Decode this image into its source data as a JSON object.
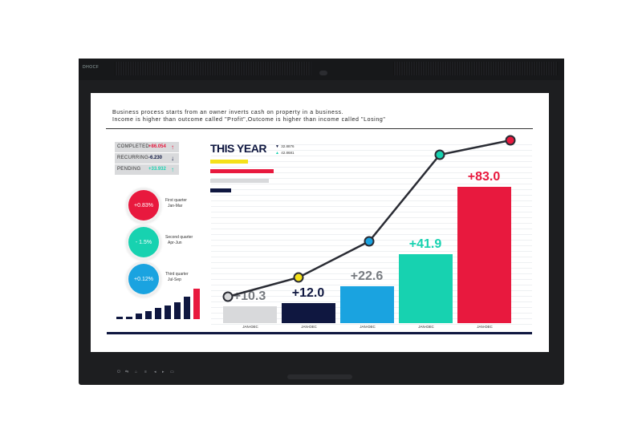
{
  "device": {
    "brand": "DHOCF"
  },
  "header": {
    "line1": "Business process starts from an owner inverts cash on property in a business.",
    "line2": "Income is higher than outcome called \"Profit\",Outcome is higher than income called \"Losing\""
  },
  "stats": [
    {
      "label": "COMPLETED",
      "value": "+86.054",
      "arrow": "↑",
      "color": "#e8193e"
    },
    {
      "label": "RECURRING",
      "value": "-6.230",
      "arrow": "↓",
      "color": "#0f1740"
    },
    {
      "label": "PENDING",
      "value": "+33.932",
      "arrow": "↑",
      "color": "#17d2b0"
    }
  ],
  "quarters": [
    {
      "value": "+0.83%",
      "title": "First quarter",
      "range": "Jan-Mar",
      "color": "#e8193e"
    },
    {
      "value": "- 1.5%",
      "title": "Second quarter",
      "range": "Apr-Jun",
      "color": "#17d2b0"
    },
    {
      "value": "+0.12%",
      "title": "Third quarter",
      "range": "Jul-Sep",
      "color": "#1aa3e0"
    }
  ],
  "mini_chart": {
    "values": [
      1,
      1,
      2,
      3,
      4,
      5,
      6,
      8,
      11
    ],
    "colors": [
      "#0f1740",
      "#0f1740",
      "#0f1740",
      "#0f1740",
      "#0f1740",
      "#0f1740",
      "#0f1740",
      "#0f1740",
      "#e8193e"
    ]
  },
  "this_year": {
    "title": "THIS YEAR",
    "legend": [
      {
        "marker": "▼",
        "text": "32.8876",
        "color": "#0f1740"
      },
      {
        "marker": "▲",
        "text": "42.8681",
        "color": "#17d2b0"
      }
    ],
    "bars": [
      {
        "fraction": 0.6,
        "color": "#f5e11a"
      },
      {
        "fraction": 1.0,
        "color": "#e8193e"
      },
      {
        "fraction": 0.92,
        "color": "#d8d9db"
      },
      {
        "fraction": 0.33,
        "color": "#0f1740"
      }
    ]
  },
  "chart_data": {
    "type": "bar",
    "categories": [
      "JAN-DEC",
      "JAN-DEC",
      "JAN-DEC",
      "JAN-DEC",
      "JAN-DEC"
    ],
    "values": [
      10.3,
      12.0,
      22.6,
      41.9,
      83.0
    ],
    "labels": [
      "+10.3",
      "+12.0",
      "+22.6",
      "+41.9",
      "+83.0"
    ],
    "colors": [
      "#d8d9db",
      "#0f1740",
      "#1aa3e0",
      "#17d2b0",
      "#e8193e"
    ],
    "label_colors": [
      "#777b80",
      "#0f1740",
      "#777b80",
      "#17d2b0",
      "#e8193e"
    ],
    "ylim": [
      0,
      83
    ],
    "line": {
      "values": [
        12,
        20,
        35,
        71,
        77
      ],
      "marker_colors": [
        "#d8d9db",
        "#f5e11a",
        "#1aa3e0",
        "#17d2b0",
        "#e8193e"
      ],
      "ylim": [
        0,
        80
      ]
    }
  }
}
